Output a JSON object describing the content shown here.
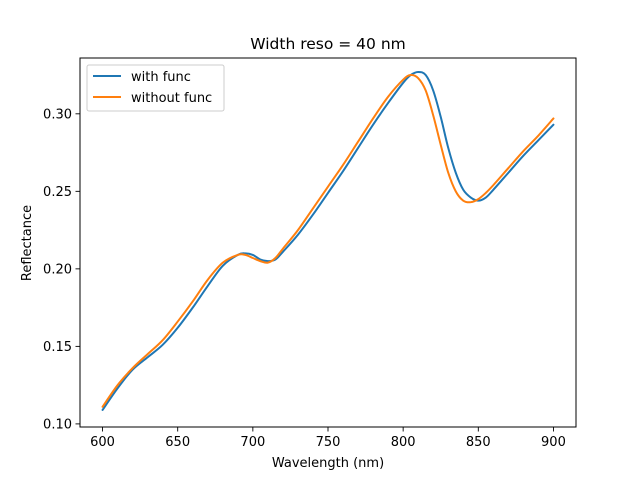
{
  "chart_data": {
    "type": "line",
    "title": "Width reso = 40 nm",
    "xlabel": "Wavelength (nm)",
    "ylabel": "Reflectance",
    "xlim": [
      585,
      915
    ],
    "ylim": [
      0.098,
      0.336
    ],
    "xticks": [
      600,
      650,
      700,
      750,
      800,
      850,
      900
    ],
    "yticks": [
      0.1,
      0.15,
      0.2,
      0.25,
      0.3
    ],
    "ytick_labels": [
      "0.10",
      "0.15",
      "0.20",
      "0.25",
      "0.30"
    ],
    "grid": false,
    "legend": {
      "position": "top-left"
    },
    "series": [
      {
        "name": "with func",
        "color": "#1f77b4",
        "x": [
          600,
          610,
          620,
          630,
          640,
          650,
          660,
          670,
          680,
          690,
          695,
          700,
          705,
          710,
          715,
          720,
          730,
          740,
          750,
          760,
          770,
          780,
          790,
          800,
          805,
          810,
          815,
          820,
          825,
          830,
          835,
          840,
          845,
          850,
          855,
          860,
          870,
          880,
          890,
          900
        ],
        "y": [
          0.109,
          0.123,
          0.135,
          0.143,
          0.151,
          0.162,
          0.175,
          0.189,
          0.202,
          0.209,
          0.21,
          0.209,
          0.206,
          0.205,
          0.206,
          0.211,
          0.222,
          0.235,
          0.249,
          0.263,
          0.278,
          0.293,
          0.307,
          0.32,
          0.325,
          0.327,
          0.325,
          0.315,
          0.298,
          0.278,
          0.262,
          0.251,
          0.246,
          0.244,
          0.246,
          0.251,
          0.262,
          0.273,
          0.283,
          0.293
        ]
      },
      {
        "name": "without func",
        "color": "#ff7f0e",
        "x": [
          600,
          610,
          620,
          630,
          640,
          650,
          660,
          670,
          680,
          690,
          695,
          700,
          705,
          710,
          715,
          720,
          730,
          740,
          750,
          760,
          770,
          780,
          790,
          800,
          805,
          810,
          815,
          820,
          825,
          830,
          835,
          840,
          845,
          850,
          855,
          860,
          870,
          880,
          890,
          900
        ],
        "y": [
          0.111,
          0.125,
          0.136,
          0.145,
          0.154,
          0.166,
          0.179,
          0.193,
          0.204,
          0.209,
          0.209,
          0.207,
          0.205,
          0.204,
          0.207,
          0.213,
          0.225,
          0.239,
          0.253,
          0.267,
          0.282,
          0.297,
          0.311,
          0.322,
          0.325,
          0.323,
          0.315,
          0.299,
          0.28,
          0.262,
          0.25,
          0.244,
          0.243,
          0.245,
          0.249,
          0.254,
          0.265,
          0.276,
          0.286,
          0.297
        ]
      }
    ]
  }
}
